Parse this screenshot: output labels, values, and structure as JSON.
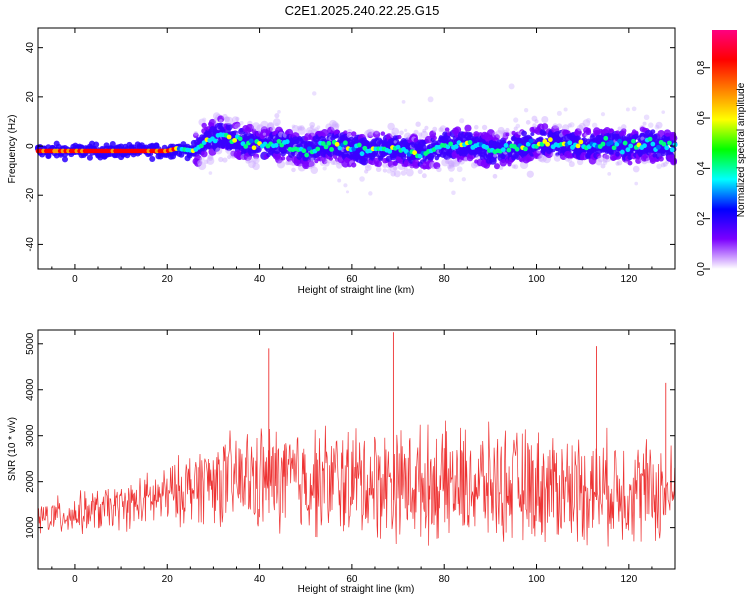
{
  "title": "C2E1.2025.240.22.25.G15",
  "chart_data": [
    {
      "type": "heatmap",
      "xlabel": "Height of straight line (km)",
      "ylabel": "Frequency (Hz)",
      "xlim": [
        -8,
        130
      ],
      "ylim": [
        -50,
        48
      ],
      "xticks": [
        "0",
        "20",
        "40",
        "60",
        "80",
        "100",
        "120"
      ],
      "yticks": [
        "-40",
        "-20",
        "0",
        "20",
        "40"
      ],
      "colorbar": {
        "label": "Normalized spectral amplitude",
        "range": [
          0.0,
          0.95
        ],
        "ticks": [
          "0.0",
          "0.2",
          "0.4",
          "0.6",
          "0.8"
        ],
        "colors": [
          "#ffffff",
          "#7b00ff",
          "#0000ff",
          "#00ffff",
          "#00ff00",
          "#ffff00",
          "#ff8000",
          "#ff0000",
          "#ff0080"
        ]
      },
      "ridge": {
        "x": [
          -8,
          0,
          10,
          20,
          22,
          26,
          28,
          30,
          32,
          35,
          40,
          45,
          50,
          55,
          60,
          65,
          70,
          75,
          80,
          85,
          90,
          95,
          100,
          105,
          110,
          115,
          120,
          125,
          130
        ],
        "y": [
          -2,
          -2,
          -2,
          -2,
          -1,
          -2,
          2,
          3,
          5,
          2,
          0,
          1,
          -2,
          1,
          -1,
          -2,
          -1,
          -3,
          0,
          1,
          -2,
          -1,
          2,
          1,
          0,
          1,
          0,
          1,
          -1
        ]
      }
    },
    {
      "type": "line",
      "xlabel": "Height of straight line (km)",
      "ylabel": "SNR (10 * v/v)",
      "xlim": [
        -8,
        130
      ],
      "ylim": [
        100,
        5300
      ],
      "xticks": [
        "0",
        "20",
        "40",
        "60",
        "80",
        "100",
        "120"
      ],
      "yticks": [
        "1000",
        "2000",
        "3000",
        "4000",
        "5000"
      ],
      "color": "#ee3333",
      "envelope": {
        "x": [
          -8,
          0,
          10,
          20,
          28,
          40,
          60,
          80,
          100,
          120,
          130
        ],
        "mean": [
          1200,
          1300,
          1450,
          1700,
          2000,
          2050,
          2000,
          1950,
          1900,
          1850,
          1700
        ],
        "amplitude": [
          350,
          400,
          450,
          600,
          800,
          1050,
          1100,
          1100,
          1100,
          1050,
          1000
        ]
      },
      "peaks": [
        {
          "x": 42,
          "y": 4900
        },
        {
          "x": 69,
          "y": 5250
        },
        {
          "x": 113,
          "y": 4950
        },
        {
          "x": 128,
          "y": 4150
        }
      ]
    }
  ]
}
